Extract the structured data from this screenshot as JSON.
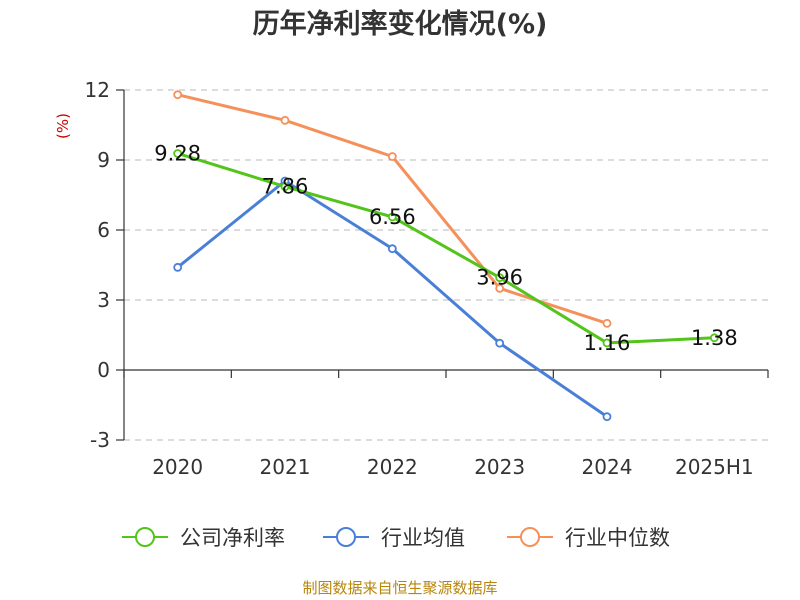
{
  "chart_data": {
    "type": "line",
    "title": "历年净利率变化情况(%)",
    "ylabel": "(%)",
    "categories": [
      "2020",
      "2021",
      "2022",
      "2023",
      "2024",
      "2025H1"
    ],
    "ylim": [
      -3,
      12
    ],
    "yticks": [
      -3,
      0,
      3,
      6,
      9,
      12
    ],
    "grid": true,
    "legend_position": "bottom",
    "series": [
      {
        "name": "公司净利率",
        "color": "#52c41a",
        "values": [
          9.28,
          7.86,
          6.56,
          3.96,
          1.16,
          1.38
        ],
        "labels": [
          "9.28",
          "7.86",
          "6.56",
          "3.96",
          "1.16",
          "1.38"
        ]
      },
      {
        "name": "行业均值",
        "color": "#4a7fd8",
        "values": [
          4.4,
          8.1,
          5.2,
          1.15,
          -2.0,
          null
        ]
      },
      {
        "name": "行业中位数",
        "color": "#f5905a",
        "values": [
          11.8,
          10.7,
          9.15,
          3.5,
          2.0,
          null
        ]
      }
    ]
  },
  "footer": {
    "source": "制图数据来自恒生聚源数据库"
  }
}
